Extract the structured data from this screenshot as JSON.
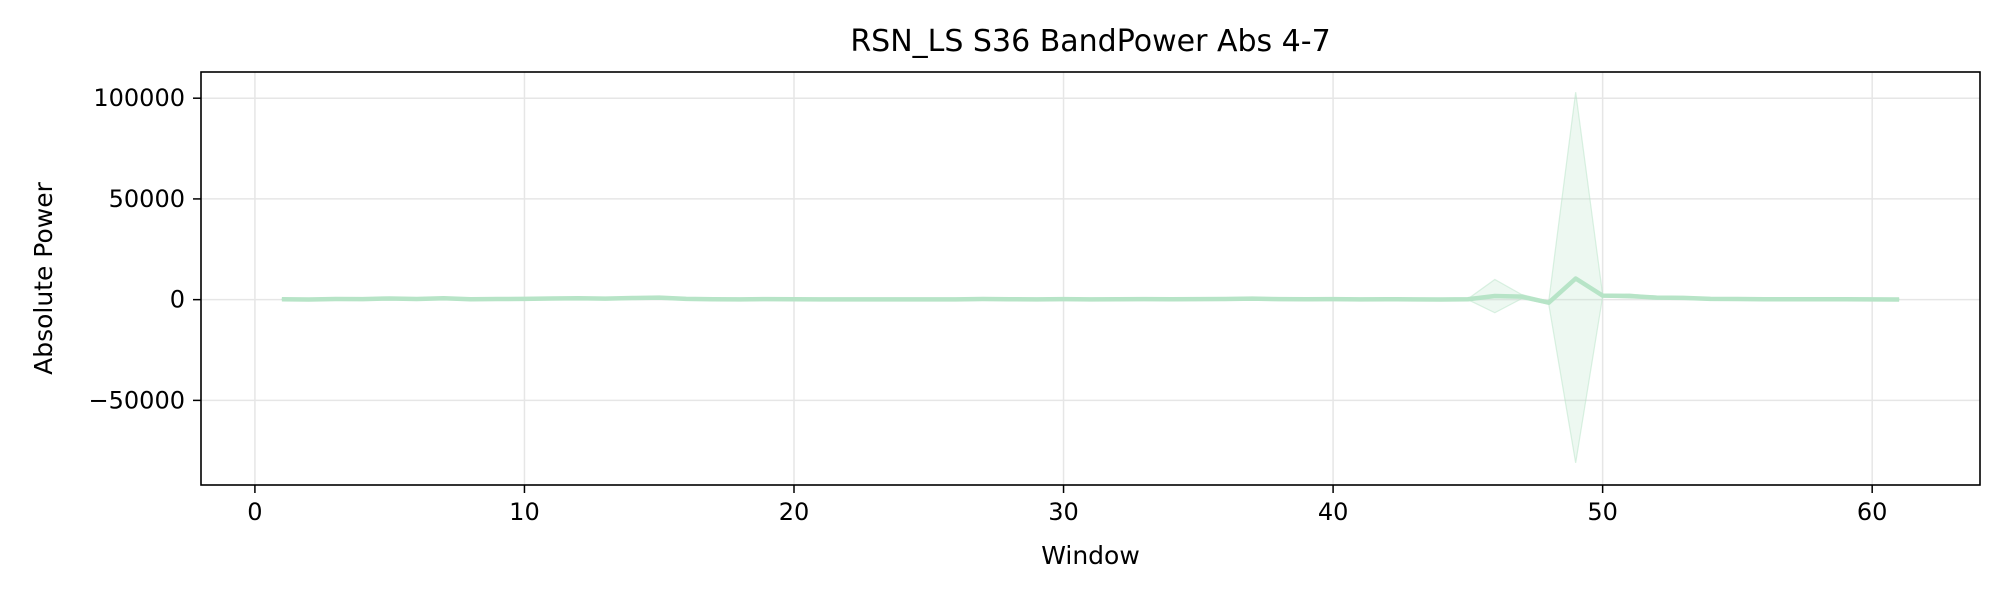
{
  "chart_data": {
    "type": "line",
    "title": "RSN_LS S36 BandPower Abs 4-7",
    "xlabel": "Window",
    "ylabel": "Absolute Power",
    "xlim": [
      -2,
      64
    ],
    "ylim": [
      -92000,
      113000
    ],
    "x_ticks": [
      0,
      10,
      20,
      30,
      40,
      50,
      60
    ],
    "x_tick_labels": [
      "0",
      "10",
      "20",
      "30",
      "40",
      "50",
      "60"
    ],
    "y_ticks": [
      -50000,
      0,
      50000,
      100000
    ],
    "y_tick_labels": [
      "−50000",
      "0",
      "50000",
      "100000"
    ],
    "grid": true,
    "line_color": "#b7e4c7",
    "band_color": "#b7e4c7",
    "series": [
      {
        "x": [
          1,
          2,
          3,
          4,
          5,
          6,
          7,
          8,
          9,
          10,
          11,
          12,
          13,
          14,
          15,
          16,
          17,
          18,
          19,
          20,
          21,
          22,
          23,
          24,
          25,
          26,
          27,
          28,
          29,
          30,
          31,
          32,
          33,
          34,
          35,
          36,
          37,
          38,
          39,
          40,
          41,
          42,
          43,
          44,
          45,
          46,
          47,
          48,
          49,
          50,
          51,
          52,
          53,
          54,
          55,
          56,
          57,
          58,
          59,
          60,
          61
        ],
        "y": [
          200,
          100,
          300,
          250,
          600,
          300,
          700,
          200,
          300,
          400,
          600,
          700,
          500,
          800,
          1000,
          400,
          200,
          150,
          250,
          200,
          150,
          150,
          150,
          150,
          150,
          150,
          300,
          200,
          150,
          250,
          150,
          200,
          250,
          200,
          250,
          300,
          500,
          250,
          200,
          250,
          150,
          200,
          150,
          100,
          200,
          1800,
          1500,
          -1500,
          10500,
          2000,
          1800,
          1000,
          900,
          400,
          300,
          200,
          200,
          200,
          200,
          150,
          100
        ],
        "upper": [
          300,
          200,
          400,
          350,
          800,
          400,
          900,
          300,
          400,
          500,
          800,
          900,
          700,
          1000,
          1300,
          600,
          300,
          250,
          350,
          300,
          250,
          250,
          250,
          250,
          250,
          250,
          400,
          300,
          250,
          350,
          250,
          300,
          350,
          300,
          350,
          400,
          700,
          350,
          300,
          350,
          250,
          300,
          250,
          200,
          400,
          10000,
          2500,
          -800,
          103000,
          2500,
          2800,
          1300,
          1100,
          550,
          450,
          300,
          300,
          300,
          300,
          250,
          200
        ],
        "lower": [
          100,
          0,
          200,
          150,
          400,
          200,
          500,
          100,
          200,
          300,
          400,
          500,
          300,
          600,
          700,
          200,
          100,
          50,
          150,
          100,
          50,
          50,
          50,
          50,
          50,
          50,
          200,
          100,
          50,
          150,
          50,
          100,
          150,
          100,
          150,
          200,
          300,
          150,
          100,
          150,
          50,
          100,
          50,
          0,
          0,
          -6500,
          500,
          -2200,
          -81000,
          1500,
          800,
          700,
          700,
          250,
          150,
          100,
          100,
          100,
          100,
          50,
          0
        ]
      }
    ]
  }
}
